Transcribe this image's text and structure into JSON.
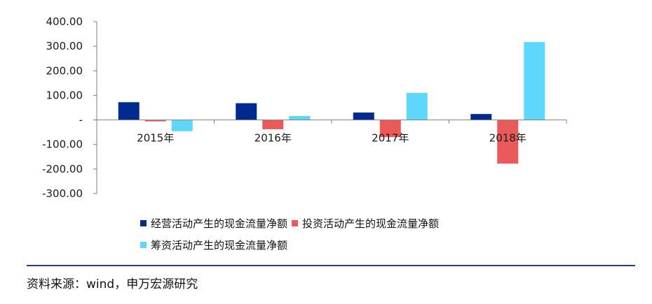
{
  "chart_data": {
    "type": "bar",
    "categories": [
      "2015年",
      "2016年",
      "2017年",
      "2018年"
    ],
    "series": [
      {
        "name": "经营活动产生的现金流量净额",
        "color": "#002a8f",
        "values": [
          72,
          68,
          30,
          24
        ]
      },
      {
        "name": "投资活动产生的现金流量净额",
        "color": "#ea5a5a",
        "values": [
          -6,
          -38,
          -70,
          -178
        ]
      },
      {
        "name": "筹资活动产生的现金流量净额",
        "color": "#5fd6fb",
        "values": [
          -46,
          16,
          110,
          317
        ]
      }
    ],
    "yticks": [
      "400.00",
      "300.00",
      "200.00",
      "100.00",
      "-",
      "-100.00",
      "-200.00",
      "-300.00"
    ],
    "ylim": [
      -300,
      400
    ],
    "legend_position": "bottom",
    "grid": false
  },
  "source": "资料来源：wind，申万宏源研究"
}
